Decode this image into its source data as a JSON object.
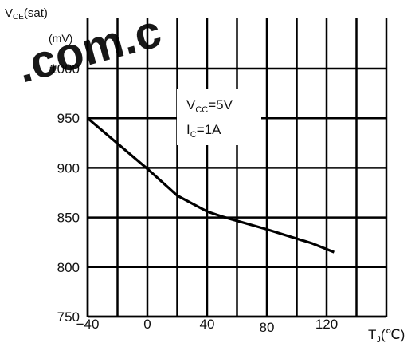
{
  "watermark": {
    "text": ".com.c",
    "color": "#e0201c"
  },
  "chart_data": {
    "type": "line",
    "title": "",
    "ylabel": {
      "symbol": "V",
      "subscript": "CE",
      "suffix": "(sat)",
      "unit": "(mV)"
    },
    "xlabel": {
      "symbol": "T",
      "subscript": "J",
      "suffix": "(℃)"
    },
    "annotation": [
      {
        "symbol": "V",
        "subscript": "CC",
        "suffix": "=5V"
      },
      {
        "symbol": "I",
        "subscript": "C",
        "suffix": "=1A"
      }
    ],
    "xlim": [
      -40,
      160
    ],
    "ylim": [
      750,
      1000
    ],
    "x_ticks": [
      -40,
      0,
      40,
      80,
      120
    ],
    "y_ticks": [
      750,
      800,
      850,
      900,
      950,
      1000
    ],
    "x_gridlines": [
      -40,
      -20,
      0,
      20,
      40,
      60,
      80,
      100,
      120,
      140,
      160
    ],
    "y_gridlines": [
      750,
      800,
      850,
      900,
      950,
      1000
    ],
    "grid": true,
    "series": [
      {
        "x": [
          -40,
          0,
          20,
          40,
          50,
          80,
          110,
          125
        ],
        "y": [
          950,
          899,
          872,
          856,
          851,
          838,
          824,
          815
        ]
      }
    ],
    "colors": {
      "line": "#000000",
      "grid": "#000000",
      "text": "#111111"
    }
  }
}
